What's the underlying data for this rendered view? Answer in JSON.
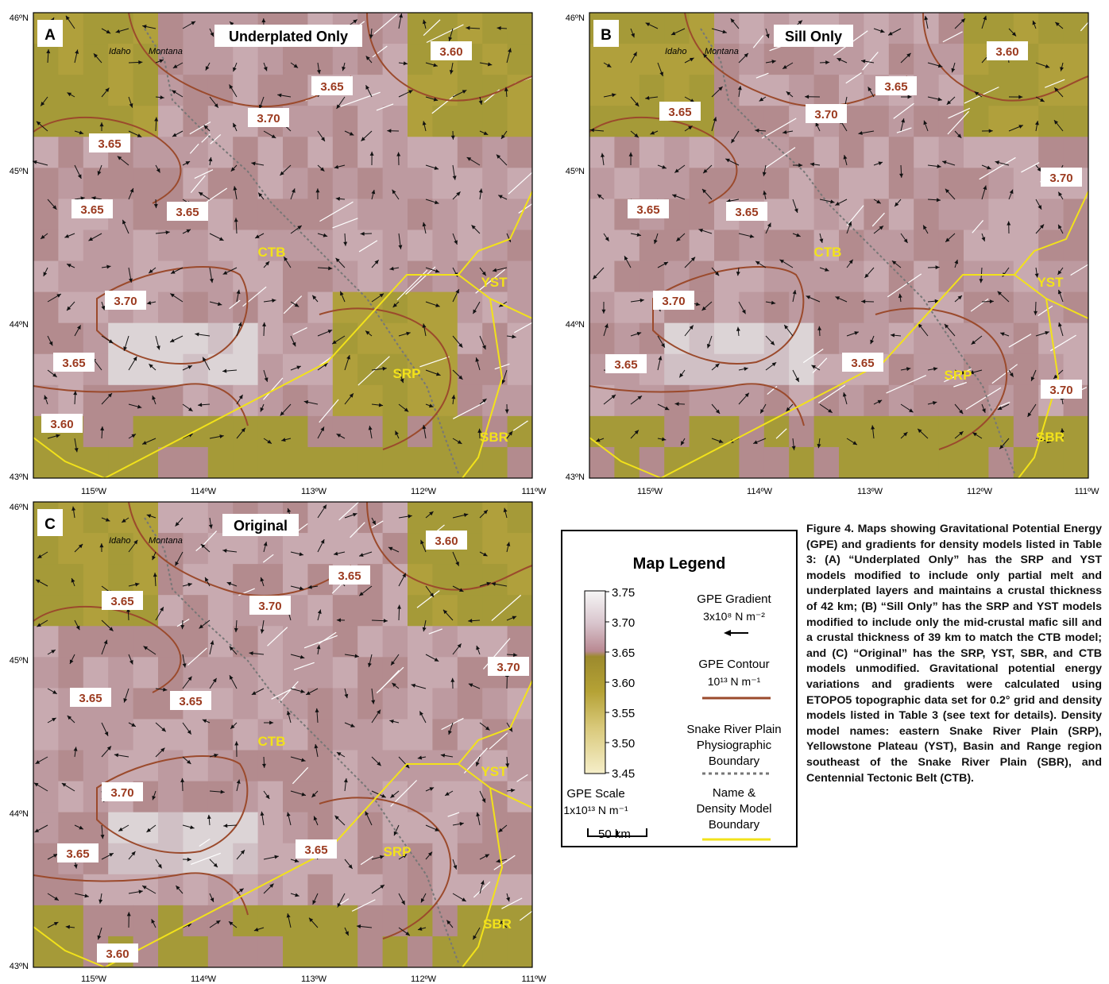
{
  "map": {
    "lon_ticks": [
      "115ºW",
      "114ºW",
      "113ºW",
      "112ºW",
      "111ºW"
    ],
    "lat_ticks": [
      "46ºN",
      "45ºN",
      "44ºN",
      "43ºN"
    ],
    "state_labels": [
      "Idaho",
      "Montana"
    ],
    "region_labels": [
      "CTB",
      "YST",
      "SRP",
      "SBR"
    ],
    "colors": {
      "contour": "#9b4a2c",
      "boundary": "#f2e21a",
      "physio": "#777777",
      "fault": "#ffffff",
      "label_text": "#9b3a1f",
      "region_text": "#f2e21a"
    }
  },
  "panels": [
    {
      "letter": "A",
      "title": "Underplated Only",
      "contour_labels": [
        "3.60",
        "3.65",
        "3.70",
        "3.65",
        "3.65",
        "3.65",
        "3.70",
        "3.65",
        "3.60"
      ],
      "regions": [
        "CTB",
        "YST",
        "SRP",
        "SBR"
      ]
    },
    {
      "letter": "B",
      "title": "Sill Only",
      "contour_labels": [
        "3.60",
        "3.65",
        "3.65",
        "3.70",
        "3.70",
        "3.65",
        "3.65",
        "3.70",
        "3.65",
        "3.65",
        "3.70"
      ],
      "regions": [
        "CTB",
        "YST",
        "SRP",
        "SBR"
      ]
    },
    {
      "letter": "C",
      "title": "Original",
      "contour_labels": [
        "3.60",
        "3.65",
        "3.65",
        "3.70",
        "3.70",
        "3.65",
        "3.65",
        "3.70",
        "3.65",
        "3.65",
        "3.60"
      ],
      "regions": [
        "CTB",
        "YST",
        "SRP",
        "SBR"
      ]
    }
  ],
  "legend": {
    "title": "Map Legend",
    "scale_ticks": [
      "3.75",
      "3.70",
      "3.65",
      "3.60",
      "3.55",
      "3.50",
      "3.45"
    ],
    "scale_title": "GPE Scale",
    "scale_unit": "1x10¹³ N m⁻¹",
    "gradient_title": "GPE Gradient",
    "gradient_unit": "3x10⁸ N m⁻²",
    "contour_title": "GPE Contour",
    "contour_unit": "10¹³ N m⁻¹",
    "physio_lines": [
      "Snake River Plain",
      "Physiographic",
      "Boundary"
    ],
    "name_lines": [
      "Name &",
      "Density Model",
      "Boundary"
    ],
    "scalebar": "50 km"
  },
  "caption": "Figure 4. Maps showing Gravitational Potential Energy (GPE) and gradients for density models listed in Table 3: (A) “Underplated Only” has the SRP and YST models modified to include only partial melt and underplated layers and maintains a crustal thickness of 42 km; (B) “Sill Only” has the SRP and YST models modified to include only the mid-crustal mafic sill and a crustal thickness of 39 km to match the CTB model; and (C) “Original” has the SRP, YST, SBR, and CTB models unmodified. Gravitational potential energy variations and gradients were calculated using ETOPO5 topographic data set for 0.2° grid and density models listed in Table 3 (see text for details). Density model names: eastern Snake River Plain (SRP), Yellowstone Plateau (YST), Basin and Range region southeast of the Snake River Plain (SBR), and Centennial Tectonic Belt (CTB)."
}
